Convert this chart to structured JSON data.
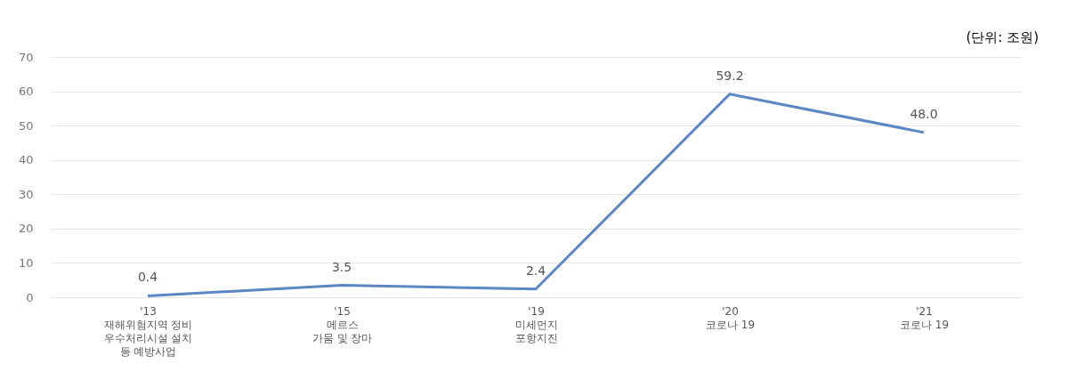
{
  "chart_data": {
    "type": "line",
    "categories": [
      "'13\n재해위험지역 정비\n우수처리시설 설치\n등 예방사업",
      "'15\n메르스\n가뭄 및 장마",
      "'19\n미세먼지\n포항지진",
      "'20\n코로나 19",
      "'21\n코로나 19"
    ],
    "series": [
      {
        "color": "#5b87c5",
        "values": [
          0.4,
          3.5,
          2.4,
          59.2,
          48.0
        ]
      }
    ],
    "value_labels": [
      "0.4",
      "3.5",
      "2.4",
      "59.2",
      "48.0"
    ],
    "ylim": [
      0,
      70
    ],
    "yticks": [
      0,
      10,
      20,
      30,
      40,
      50,
      60,
      70
    ],
    "grid": "y",
    "marker": "none",
    "line_style": "solid",
    "annotations": [
      "(단위: 조원)"
    ]
  }
}
